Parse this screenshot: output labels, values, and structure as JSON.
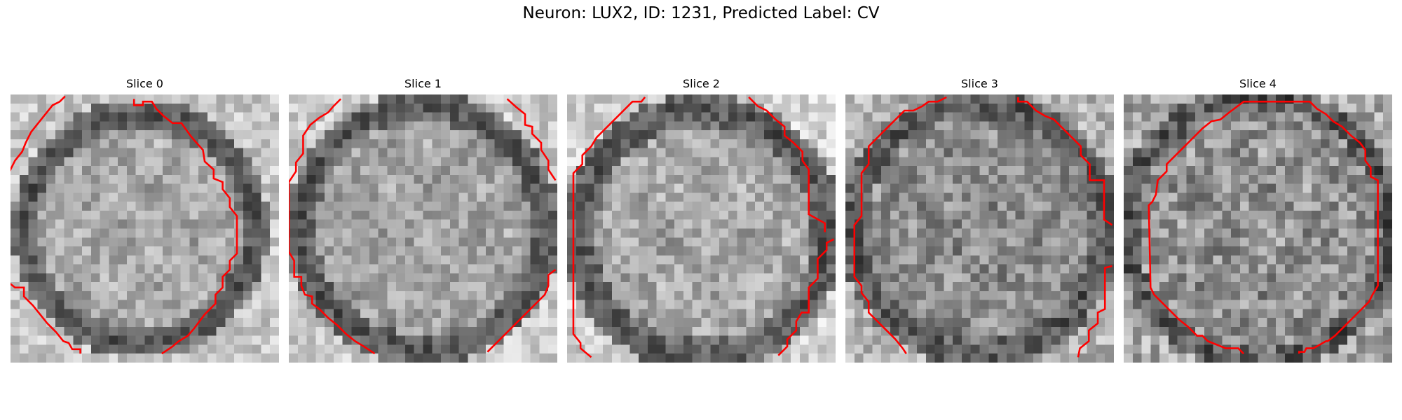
{
  "figure": {
    "title": "Neuron: LUX2, ID: 1231, Predicted Label: CV"
  },
  "colors": {
    "contour": "#ff0000",
    "background": "#ffffff"
  },
  "slices": [
    {
      "title": "Slice 0"
    },
    {
      "title": "Slice 1"
    },
    {
      "title": "Slice 2"
    },
    {
      "title": "Slice 3"
    },
    {
      "title": "Slice 4"
    }
  ]
}
